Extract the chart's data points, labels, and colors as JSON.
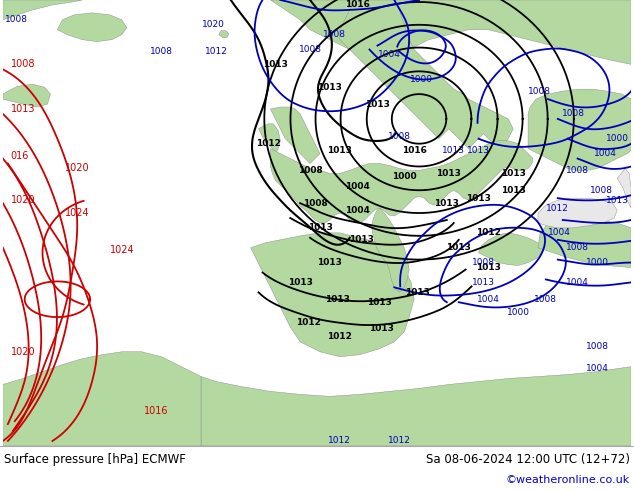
{
  "title_left": "Surface pressure [hPa] ECMWF",
  "title_right": "Sa 08-06-2024 12:00 UTC (12+72)",
  "copyright": "©weatheronline.co.uk",
  "bg_color": "#ffffff",
  "land_color": "#b3d9a0",
  "sea_color": "#e8e8e8",
  "text_color": "#000000",
  "copyright_color": "#0000cc",
  "fig_width": 6.34,
  "fig_height": 4.9,
  "dpi": 100
}
